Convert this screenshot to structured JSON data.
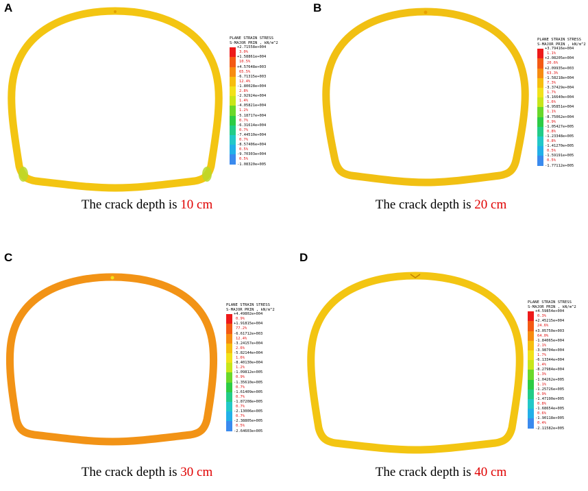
{
  "legend_title": [
    "PLANE STRAIN STRESS",
    "S-MAJOR PRIN , kN/m^2"
  ],
  "caption_prefix": "The crack depth is ",
  "palette": [
    "#ee1a1a",
    "#f45a14",
    "#f78c10",
    "#f7be0e",
    "#f2e21a",
    "#c8e61a",
    "#6ad82a",
    "#2dcc45",
    "#22cc88",
    "#22c8c8",
    "#22b0e8",
    "#3a8aee",
    "#2f56f0",
    "#2020d0"
  ],
  "panels": [
    {
      "label": "A",
      "depth": "10 cm",
      "ring_color": "#f3c512",
      "values": [
        "+2.71558e+004",
        "+1.58861e+004",
        "+4.57648e+003",
        "-6.71315e+003",
        "-1.80028e+004",
        "-2.92924e+004",
        "-4.05821e+004",
        "-5.18717e+004",
        "-6.31614e+004",
        "-7.44510e+004",
        "-8.57406e+004",
        "-9.70303e+004",
        "-1.08320e+005"
      ],
      "percents": [
        "3.0%",
        "10.5%",
        "65.5%",
        "12.4%",
        "2.8%",
        "1.4%",
        "1.2%",
        "0.7%",
        "0.7%",
        "0.7%",
        "0.5%",
        "0.5%"
      ]
    },
    {
      "label": "B",
      "depth": "20 cm",
      "ring_color": "#f1c013",
      "values": [
        "+3.79416e+004",
        "+2.08205e+004",
        "+2.09935e+003",
        "-1.58218e+004",
        "-3.37429e+004",
        "-5.16640e+004",
        "-6.95851e+004",
        "-8.75062e+004",
        "-1.05427e+005",
        "-1.23348e+005",
        "-1.41270e+005",
        "-1.59191e+005",
        "-1.77112e+005"
      ],
      "percents": [
        "1.1%",
        "20.6%",
        "63.3%",
        "7.3%",
        "1.7%",
        "1.6%",
        "1.1%",
        "0.9%",
        "0.8%",
        "0.8%",
        "0.5%",
        "0.5%"
      ]
    },
    {
      "label": "C",
      "depth": "30 cm",
      "ring_color": "#f29316",
      "values": [
        "+4.49802e+004",
        "+1.91815e+004",
        "-6.61712e+003",
        "-3.24157e+004",
        "-5.82144e+004",
        "-8.40130e+004",
        "-1.09812e+005",
        "-1.35610e+005",
        "-1.61409e+005",
        "-1.87208e+005",
        "-2.13006e+005",
        "-2.38805e+005",
        "-2.64603e+005"
      ],
      "percents": [
        "0.9%",
        "77.2%",
        "12.4%",
        "2.6%",
        "1.6%",
        "1.2%",
        "0.9%",
        "0.7%",
        "0.7%",
        "0.7%",
        "0.7%",
        "0.5%"
      ]
    },
    {
      "label": "D",
      "depth": "40 cm",
      "ring_color": "#f3c512",
      "values": [
        "+4.59854e+004",
        "+2.45215e+004",
        "+3.05750e+003",
        "-1.84065e+004",
        "-3.98704e+004",
        "-6.13344e+004",
        "-8.27984e+004",
        "-1.04262e+005",
        "-1.25726e+005",
        "-1.47190e+005",
        "-1.68654e+005",
        "-1.90118e+005",
        "-2.11582e+005"
      ],
      "percents": [
        "0.3%",
        "24.6%",
        "64.0%",
        "2.1%",
        "1.7%",
        "1.4%",
        "1.3%",
        "1.1%",
        "0.9%",
        "0.8%",
        "0.6%",
        "0.4%"
      ]
    }
  ]
}
